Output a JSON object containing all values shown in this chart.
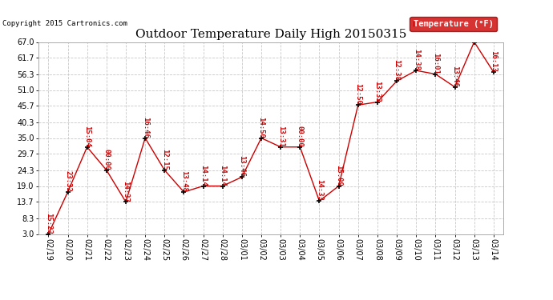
{
  "title": "Outdoor Temperature Daily High 20150315",
  "copyright": "Copyright 2015 Cartronics.com",
  "legend_label": "Temperature (°F)",
  "dates": [
    "02/19",
    "02/20",
    "02/21",
    "02/22",
    "02/23",
    "02/24",
    "02/25",
    "02/26",
    "02/27",
    "02/28",
    "03/01",
    "03/02",
    "03/03",
    "03/04",
    "03/05",
    "03/06",
    "03/07",
    "03/08",
    "03/09",
    "03/10",
    "03/11",
    "03/12",
    "03/13",
    "03/14"
  ],
  "temps": [
    3.0,
    17.0,
    32.0,
    24.3,
    13.7,
    35.0,
    24.3,
    17.0,
    19.0,
    19.0,
    22.0,
    35.0,
    32.0,
    32.0,
    14.0,
    19.0,
    46.0,
    47.0,
    54.0,
    57.5,
    56.3,
    52.0,
    67.0,
    57.0
  ],
  "times": [
    "15:23",
    "23:32",
    "15:04",
    "00:00",
    "14:37",
    "16:46",
    "12:15",
    "13:48",
    "14:14",
    "14:14",
    "13:46",
    "14:50",
    "13:31",
    "00:00",
    "14:33",
    "15:09",
    "12:50",
    "13:32",
    "12:38",
    "14:38",
    "16:01",
    "13:46",
    "",
    "16:13"
  ],
  "ylim_min": 3.0,
  "ylim_max": 67.0,
  "yticks": [
    3.0,
    8.3,
    13.7,
    19.0,
    24.3,
    29.7,
    35.0,
    40.3,
    45.7,
    51.0,
    56.3,
    61.7,
    67.0
  ],
  "line_color": "#cc0000",
  "marker_color": "#000000",
  "bg_color": "#ffffff",
  "grid_color": "#c8c8c8",
  "title_fontsize": 11,
  "axis_fontsize": 7,
  "label_fontsize": 6.5,
  "copyright_fontsize": 6.5
}
